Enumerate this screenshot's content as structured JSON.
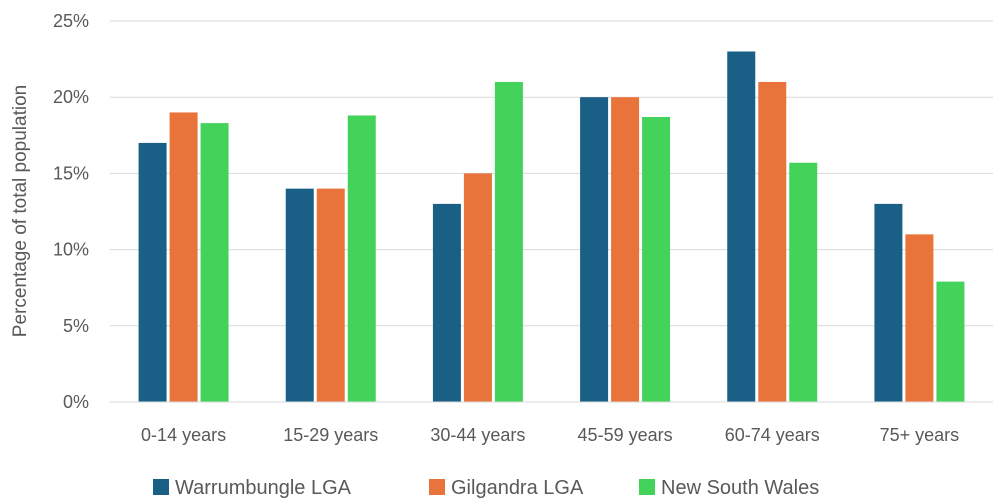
{
  "chart_data": {
    "type": "bar",
    "title": "",
    "xlabel": "",
    "ylabel": "Percentage of total population",
    "ylim": [
      0,
      25
    ],
    "yticks": [
      "0%",
      "5%",
      "10%",
      "15%",
      "20%",
      "25%"
    ],
    "ytick_values": [
      0,
      5,
      10,
      15,
      20,
      25
    ],
    "grid": true,
    "legend_position": "bottom",
    "categories": [
      "0-14 years",
      "15-29 years",
      "30-44 years",
      "45-59 years",
      "60-74 years",
      "75+ years"
    ],
    "series": [
      {
        "name": "Warrumbungle LGA",
        "color": "#1a5f85",
        "values": [
          17,
          14,
          13,
          20,
          23,
          13
        ]
      },
      {
        "name": "Gilgandra LGA",
        "color": "#e8743b",
        "values": [
          19,
          14,
          15,
          20,
          21,
          11
        ]
      },
      {
        "name": "New South Wales",
        "color": "#44d35a",
        "values": [
          18.3,
          18.8,
          21,
          18.7,
          15.7,
          7.9
        ]
      }
    ]
  }
}
